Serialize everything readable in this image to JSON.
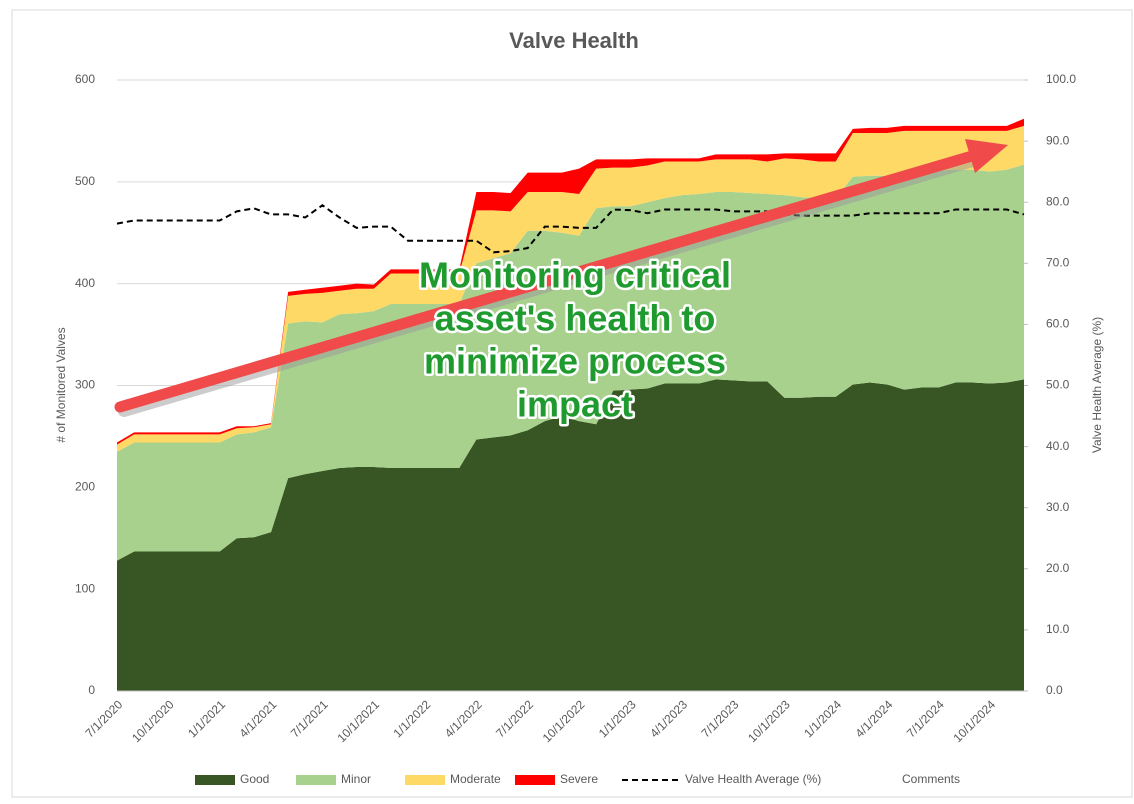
{
  "chart_data": {
    "type": "stacked_area",
    "title": "Valve Health",
    "ylabel": "# of Monitored Valves",
    "y2label": "Valve Health Average (%)",
    "annotation": [
      "Monitoring critical",
      "asset's health to",
      "minimize process",
      "impact"
    ],
    "categories": [
      "7/1/2020",
      null,
      null,
      "10/1/2020",
      null,
      null,
      "1/1/2021",
      null,
      null,
      "4/1/2021",
      null,
      null,
      "7/1/2021",
      null,
      null,
      "10/1/2021",
      null,
      null,
      "1/1/2022",
      null,
      null,
      "4/1/2022",
      null,
      null,
      "7/1/2022",
      null,
      null,
      "10/1/2022",
      null,
      null,
      "1/1/2023",
      null,
      null,
      "4/1/2023",
      null,
      null,
      "7/1/2023",
      null,
      null,
      "10/1/2023",
      null,
      null,
      "1/1/2024",
      null,
      null,
      "4/1/2024",
      null,
      null,
      "7/1/2024",
      null,
      null,
      "10/1/2024",
      null,
      null
    ],
    "series": [
      {
        "name": "Good",
        "color": "#375623",
        "values": [
          128,
          137,
          137,
          137,
          137,
          137,
          137,
          150,
          151,
          156,
          209,
          213,
          216,
          219,
          220,
          220,
          219,
          219,
          219,
          219,
          219,
          247,
          249,
          251,
          256,
          265,
          270,
          265,
          262,
          295,
          296,
          297,
          302,
          302,
          302,
          306,
          305,
          304,
          304,
          288,
          288,
          289,
          289,
          301,
          303,
          301,
          296,
          298,
          298,
          303,
          303,
          302,
          303,
          306
        ]
      },
      {
        "name": "Minor",
        "color": "#a9d18e",
        "values": [
          107,
          107,
          107,
          107,
          107,
          107,
          107,
          102,
          103,
          103,
          152,
          150,
          146,
          151,
          151,
          153,
          161,
          161,
          161,
          161,
          161,
          173,
          176,
          179,
          196,
          187,
          180,
          182,
          212,
          181,
          180,
          183,
          182,
          185,
          186,
          184,
          185,
          185,
          184,
          199,
          197,
          195,
          195,
          204,
          203,
          205,
          211,
          212,
          213,
          209,
          209,
          208,
          209,
          211
        ]
      },
      {
        "name": "Moderate",
        "color": "#ffd966",
        "values": [
          7,
          8,
          8,
          8,
          8,
          8,
          8,
          6,
          5,
          3,
          27,
          27,
          29,
          23,
          24,
          22,
          30,
          30,
          30,
          30,
          30,
          52,
          47,
          41,
          38,
          38,
          40,
          41,
          39,
          38,
          38,
          36,
          36,
          33,
          32,
          32,
          32,
          33,
          32,
          36,
          37,
          36,
          36,
          43,
          42,
          42,
          43,
          40,
          39,
          38,
          38,
          40,
          38,
          38
        ]
      },
      {
        "name": "Severe",
        "color": "#ff0000",
        "values": [
          2,
          2,
          2,
          2,
          2,
          2,
          2,
          2,
          1,
          1,
          4,
          4,
          5,
          5,
          5,
          4,
          4,
          4,
          4,
          4,
          4,
          18,
          18,
          18,
          19,
          19,
          19,
          25,
          9,
          8,
          8,
          7,
          3,
          3,
          3,
          5,
          5,
          5,
          7,
          5,
          6,
          8,
          8,
          4,
          5,
          5,
          5,
          5,
          5,
          5,
          5,
          5,
          5,
          7
        ]
      },
      {
        "name": "Valve Health Average (%)",
        "color": "#000000",
        "axis": "y2",
        "dashed": true,
        "values": [
          76.5,
          77,
          77,
          77,
          77,
          77,
          77,
          78.5,
          79,
          78,
          78,
          77.5,
          79.5,
          77.5,
          75.8,
          76,
          76,
          73.7,
          73.7,
          73.7,
          73.7,
          73.7,
          71.8,
          72,
          72.5,
          76,
          76,
          75.8,
          75.8,
          78.8,
          78.7,
          78.2,
          78.8,
          78.8,
          78.8,
          78.8,
          78.5,
          78.5,
          78.5,
          78,
          77.8,
          77.8,
          77.8,
          77.8,
          78.2,
          78.2,
          78.2,
          78.2,
          78.2,
          78.8,
          78.8,
          78.8,
          78.8,
          78
        ]
      }
    ],
    "legend_extra_entries": [
      "Comments"
    ],
    "ylim": [
      0,
      600
    ],
    "yticks": [
      0,
      100,
      200,
      300,
      400,
      500,
      600
    ],
    "y2lim": [
      0,
      100
    ],
    "y2ticks": [
      {
        "value": 0,
        "label": "0.0"
      },
      {
        "value": 10,
        "label": "10.0"
      },
      {
        "value": 20,
        "label": "20.0"
      },
      {
        "value": 30,
        "label": "30.0"
      },
      {
        "value": 40,
        "label": "40.0"
      },
      {
        "value": 50,
        "label": "50.0"
      },
      {
        "value": 60,
        "label": "60.0"
      },
      {
        "value": 70,
        "label": "70.0"
      },
      {
        "value": 80,
        "label": "80.0"
      },
      {
        "value": 90,
        "label": "90.0"
      },
      {
        "value": 100,
        "label": "100.0"
      }
    ],
    "grid": true,
    "legend": "bottom"
  }
}
